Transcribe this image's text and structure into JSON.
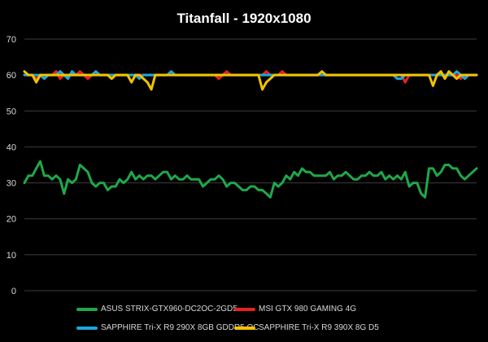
{
  "chart_data": {
    "type": "line",
    "title": "Titanfall  - 1920x1080",
    "xlabel": "",
    "ylabel": "",
    "ylim": [
      0,
      70
    ],
    "yticks": [
      0,
      10,
      20,
      30,
      40,
      50,
      60,
      70
    ],
    "grid": true,
    "legend_position": "bottom",
    "series": [
      {
        "name": "ASUS STRIX-GTX960-DC2OC-2GD5",
        "color": "#1fa84a",
        "values": [
          30,
          32,
          32,
          34,
          36,
          32,
          32,
          31,
          32,
          31,
          27,
          31,
          30,
          31,
          35,
          34,
          33,
          30,
          29,
          30,
          30,
          28,
          29,
          29,
          31,
          30,
          31,
          33,
          31,
          32,
          31,
          32,
          32,
          31,
          32,
          33,
          33,
          31,
          32,
          31,
          31,
          32,
          31,
          31,
          31,
          29,
          30,
          31,
          31,
          32,
          31,
          29,
          30,
          30,
          29,
          28,
          28,
          29,
          29,
          28,
          28,
          27,
          26,
          30,
          29,
          30,
          32,
          31,
          33,
          32,
          34,
          33,
          33,
          32,
          32,
          32,
          32,
          33,
          31,
          32,
          32,
          33,
          32,
          31,
          31,
          32,
          32,
          33,
          32,
          32,
          33,
          31,
          32,
          31,
          32,
          31,
          33,
          29,
          30,
          30,
          27,
          26,
          34,
          34,
          32,
          33,
          35,
          35,
          34,
          34,
          32,
          31,
          32,
          33,
          34
        ]
      },
      {
        "name": "MSI GTX 980 GAMING 4G",
        "color": "#e8211f",
        "values": [
          60,
          60,
          60,
          59,
          60,
          60,
          60,
          60,
          61,
          59,
          60,
          60,
          60,
          60,
          61,
          60,
          59,
          60,
          61,
          60,
          60,
          60,
          60,
          60,
          60,
          60,
          60,
          60,
          60,
          60,
          60,
          60,
          60,
          60,
          60,
          60,
          60,
          60,
          60,
          60,
          60,
          60,
          60,
          60,
          60,
          60,
          60,
          60,
          60,
          59,
          60,
          61,
          60,
          60,
          60,
          60,
          60,
          60,
          60,
          60,
          60,
          61,
          60,
          60,
          60,
          61,
          60,
          60,
          60,
          60,
          60,
          60,
          60,
          60,
          60,
          60,
          60,
          60,
          60,
          60,
          60,
          60,
          60,
          60,
          60,
          60,
          60,
          60,
          60,
          60,
          60,
          60,
          60,
          60,
          60,
          60,
          58,
          60,
          60,
          60,
          60,
          60,
          60,
          60,
          60,
          60,
          60,
          60,
          60,
          60,
          59,
          60,
          60,
          60,
          60
        ]
      },
      {
        "name": "SAPPHIRE Tri-X R9 290X 8GB GDDR5 OC",
        "color": "#1fa7dc",
        "values": [
          60,
          60,
          60,
          60,
          60,
          59,
          60,
          60,
          60,
          61,
          60,
          59,
          61,
          60,
          60,
          60,
          60,
          60,
          61,
          60,
          60,
          60,
          60,
          60,
          60,
          60,
          60,
          60,
          60,
          59,
          60,
          60,
          60,
          60,
          60,
          60,
          60,
          61,
          60,
          60,
          60,
          60,
          60,
          60,
          60,
          60,
          60,
          60,
          60,
          60,
          60,
          60,
          60,
          60,
          60,
          60,
          60,
          60,
          60,
          60,
          60,
          60,
          60,
          60,
          60,
          60,
          60,
          60,
          60,
          60,
          60,
          60,
          60,
          60,
          60,
          60,
          60,
          60,
          60,
          60,
          60,
          60,
          60,
          60,
          60,
          60,
          60,
          60,
          60,
          60,
          60,
          60,
          60,
          60,
          59,
          59,
          60,
          60,
          60,
          60,
          60,
          60,
          60,
          60,
          60,
          60,
          60,
          60,
          60,
          61,
          60,
          59,
          60,
          60,
          60
        ]
      },
      {
        "name": "SAPPHIRE Tri-X R9 390X 8G D5",
        "color": "#f2c200",
        "values": [
          61,
          60,
          60,
          58,
          60,
          60,
          60,
          60,
          60,
          60,
          60,
          60,
          60,
          60,
          60,
          60,
          60,
          60,
          60,
          60,
          60,
          60,
          59,
          60,
          60,
          60,
          60,
          58,
          60,
          60,
          59,
          58,
          56,
          60,
          60,
          60,
          60,
          60,
          60,
          60,
          60,
          60,
          60,
          60,
          60,
          60,
          60,
          60,
          60,
          60,
          60,
          60,
          60,
          60,
          60,
          60,
          60,
          60,
          60,
          60,
          56,
          58,
          59,
          60,
          60,
          60,
          60,
          60,
          60,
          60,
          60,
          60,
          60,
          60,
          60,
          61,
          60,
          60,
          60,
          60,
          60,
          60,
          60,
          60,
          60,
          60,
          60,
          60,
          60,
          60,
          60,
          60,
          60,
          60,
          60,
          60,
          60,
          60,
          60,
          60,
          60,
          60,
          60,
          57,
          60,
          61,
          59,
          61,
          60,
          59,
          60,
          60,
          60,
          60,
          60
        ]
      }
    ]
  }
}
